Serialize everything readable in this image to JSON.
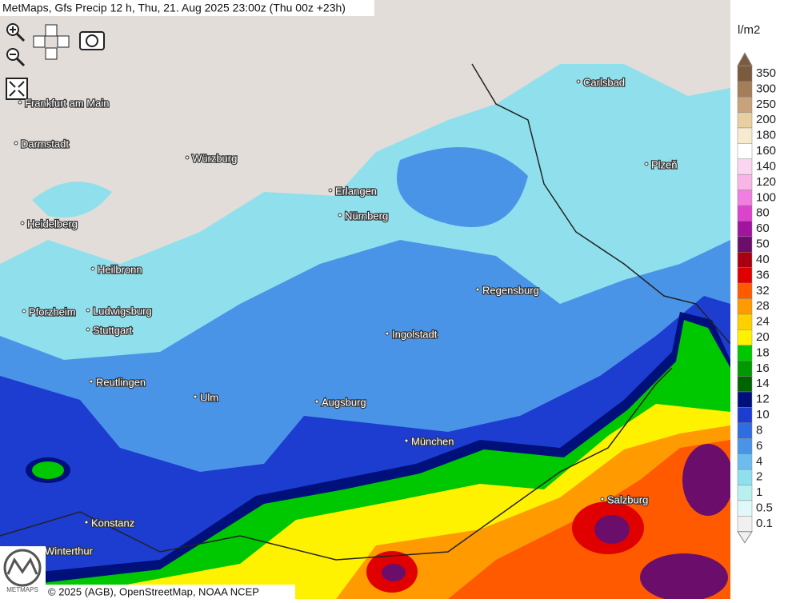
{
  "header": {
    "title": "MetMaps, Gfs Precip 12 h, Thu, 21. Aug 2025 23:00z (Thu 00z +23h)"
  },
  "cities": [
    "Carlsbad",
    "Frankfurt am Main",
    "Darmstadt",
    "Würzburg",
    "Plzeň",
    "Erlangen",
    "Nürnberg",
    "Heidelberg",
    "Heilbronn",
    "Regensburg",
    "Pforzheim",
    "Ludwigsburg",
    "Stuttgart",
    "Ingolstadt",
    "Reutlingen",
    "Ulm",
    "Augsburg",
    "München",
    "Salzburg",
    "Konstanz",
    "Winterthur"
  ],
  "legend": {
    "unit": "l/m2",
    "items": [
      {
        "label": 350,
        "color": "#7c5a3d"
      },
      {
        "label": 300,
        "color": "#a47d5a"
      },
      {
        "label": 250,
        "color": "#c8a27a"
      },
      {
        "label": 200,
        "color": "#e8cfa0"
      },
      {
        "label": 180,
        "color": "#f7ebcf"
      },
      {
        "label": 160,
        "color": "#ffffff"
      },
      {
        "label": 140,
        "color": "#fcd6f0"
      },
      {
        "label": 120,
        "color": "#f7b6e6"
      },
      {
        "label": 100,
        "color": "#f07fe0"
      },
      {
        "label": 80,
        "color": "#dd44cc"
      },
      {
        "label": 60,
        "color": "#a1159e"
      },
      {
        "label": 50,
        "color": "#6b0e6b"
      },
      {
        "label": 40,
        "color": "#a80010"
      },
      {
        "label": 36,
        "color": "#e00000"
      },
      {
        "label": 32,
        "color": "#ff5a00"
      },
      {
        "label": 28,
        "color": "#ff9b00"
      },
      {
        "label": 24,
        "color": "#ffd000"
      },
      {
        "label": 20,
        "color": "#fff200"
      },
      {
        "label": 18,
        "color": "#00c800"
      },
      {
        "label": 16,
        "color": "#009a00"
      },
      {
        "label": 14,
        "color": "#006400"
      },
      {
        "label": 12,
        "color": "#00107a"
      },
      {
        "label": 10,
        "color": "#1d3cd0"
      },
      {
        "label": 8,
        "color": "#2f6ee0"
      },
      {
        "label": 6,
        "color": "#4a94e8"
      },
      {
        "label": 4,
        "color": "#6cbcef"
      },
      {
        "label": 2,
        "color": "#8ee0ee"
      },
      {
        "label": 1,
        "color": "#b8f0f0"
      },
      {
        "label": 0.5,
        "color": "#e0f8f8"
      },
      {
        "label": 0.1,
        "color": "#f0f0f0"
      }
    ]
  },
  "logo": "METMAPS",
  "footer": {
    "copyright": "© 2025 (AGB), OpenStreetMap, NOAA NCEP"
  }
}
